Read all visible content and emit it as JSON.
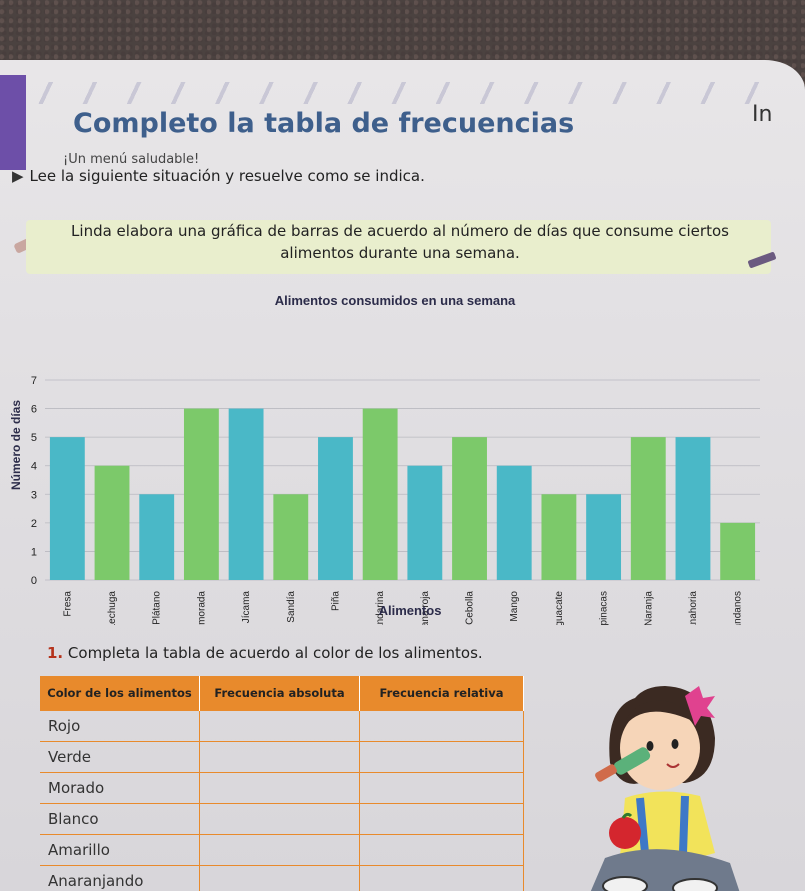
{
  "header": {
    "title": "Completo la tabla de frecuencias",
    "subtitle": "¡Un menú saludable!",
    "side_text": "In"
  },
  "instruction": "Lee la siguiente situación y resuelve como se indica.",
  "situation": "Linda elabora una gráfica de barras de acuerdo al número de días que consume ciertos alimentos durante una semana.",
  "chart_data": {
    "type": "bar",
    "title": "Alimentos consumidos en una semana",
    "xlabel": "Alimentos",
    "ylabel": "Número de días",
    "ylim": [
      0,
      7
    ],
    "yticks": [
      0,
      1,
      2,
      3,
      4,
      5,
      6,
      7
    ],
    "grid": true,
    "categories": [
      "Fresa",
      "Lechuga",
      "Plátano",
      "Uva morada",
      "Jícama",
      "Sandía",
      "Piña",
      "Mandarina",
      "Manzana roja",
      "Cebolla",
      "Mango",
      "Aguacate",
      "Espinacas",
      "Naranja",
      "Zanahoria",
      "Arándanos"
    ],
    "values": [
      5,
      4,
      3,
      6,
      6,
      3,
      5,
      6,
      4,
      5,
      4,
      3,
      3,
      5,
      5,
      2
    ],
    "colors": [
      "#4ab8c7",
      "#7cc96a",
      "#4ab8c7",
      "#7cc96a",
      "#4ab8c7",
      "#7cc96a",
      "#4ab8c7",
      "#7cc96a",
      "#4ab8c7",
      "#7cc96a",
      "#4ab8c7",
      "#7cc96a",
      "#4ab8c7",
      "#7cc96a",
      "#4ab8c7",
      "#7cc96a"
    ]
  },
  "task": {
    "number": "1.",
    "text": "Completa la tabla de acuerdo al color de los alimentos."
  },
  "table": {
    "headers": [
      "Color de los alimentos",
      "Frecuencia absoluta",
      "Frecuencia relativa"
    ],
    "rows": [
      [
        "Rojo",
        "",
        ""
      ],
      [
        "Verde",
        "",
        ""
      ],
      [
        "Morado",
        "",
        ""
      ],
      [
        "Blanco",
        "",
        ""
      ],
      [
        "Amarillo",
        "",
        ""
      ],
      [
        "Anaranjando",
        "",
        ""
      ]
    ]
  },
  "colors": {
    "title": "#3e5f8c",
    "table_header": "#e88a2c",
    "bar_blue": "#4ab8c7",
    "bar_green": "#7cc96a"
  }
}
